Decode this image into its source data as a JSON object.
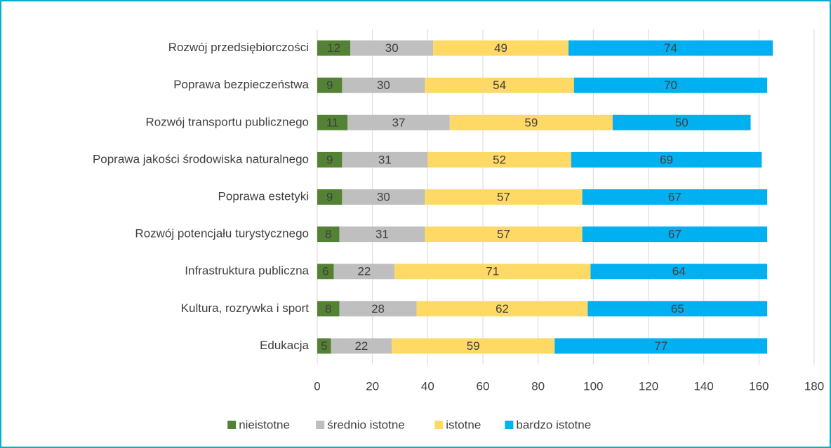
{
  "chart_data": {
    "type": "stacked-bar-horizontal",
    "categories": [
      "Rozwój przedsiębiorczości",
      "Poprawa bezpieczeństwa",
      "Rozwój transportu publicznego",
      "Poprawa jakości środowiska naturalnego",
      "Poprawa estetyki",
      "Rozwój potencjału turystycznego",
      "Infrastruktura publiczna",
      "Kultura, rozrywka i sport",
      "Edukacja"
    ],
    "series": [
      {
        "name": "nieistotne",
        "color": "#548235",
        "values": [
          12,
          9,
          11,
          9,
          9,
          8,
          6,
          8,
          5
        ]
      },
      {
        "name": "średnio istotne",
        "color": "#bfbfbf",
        "values": [
          30,
          30,
          37,
          31,
          30,
          31,
          22,
          28,
          22
        ]
      },
      {
        "name": "istotne",
        "color": "#ffd966",
        "values": [
          49,
          54,
          59,
          52,
          57,
          57,
          71,
          62,
          59
        ]
      },
      {
        "name": "bardzo istotne",
        "color": "#00b0f0",
        "values": [
          74,
          70,
          50,
          69,
          67,
          67,
          64,
          65,
          77
        ]
      }
    ],
    "xlim": [
      0,
      180
    ],
    "xticks": [
      0,
      20,
      40,
      60,
      80,
      100,
      120,
      140,
      160,
      180
    ],
    "grid": true,
    "legend": "bottom"
  }
}
